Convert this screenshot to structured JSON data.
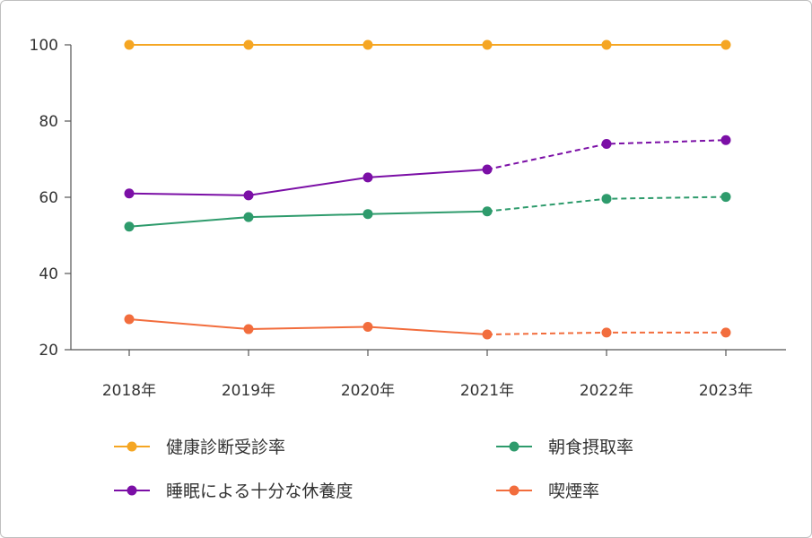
{
  "chart_data": {
    "type": "line",
    "title": "",
    "xlabel": "",
    "ylabel": "",
    "categories": [
      "2018年",
      "2019年",
      "2020年",
      "2021年",
      "2022年",
      "2023年"
    ],
    "ylim": [
      20,
      100
    ],
    "yticks": [
      20,
      40,
      60,
      80,
      100
    ],
    "grid": false,
    "legend_position": "bottom",
    "series": [
      {
        "name": "健康診断受診率",
        "color": "#f5a623",
        "values": [
          100,
          100,
          100,
          100,
          100,
          100
        ],
        "dashed_from_index": null
      },
      {
        "name": "睡眠による十分な休養度",
        "color": "#7b0fa6",
        "values": [
          61,
          60.5,
          65.2,
          67.3,
          74,
          75
        ],
        "dashed_from_index": 3
      },
      {
        "name": "朝食摂取率",
        "color": "#2e9b6c",
        "values": [
          52.3,
          54.8,
          55.6,
          56.3,
          59.6,
          60.1
        ],
        "dashed_from_index": 3
      },
      {
        "name": "喫煙率",
        "color": "#f26d3d",
        "values": [
          28,
          25.4,
          26,
          24,
          24.5,
          24.5
        ],
        "dashed_from_index": 3
      }
    ],
    "legend_order": [
      0,
      2,
      1,
      3
    ]
  }
}
